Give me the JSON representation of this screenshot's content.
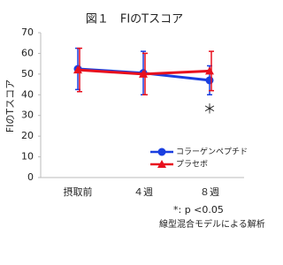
{
  "chart_data": {
    "type": "line",
    "title": "図１　FIのTスコア",
    "y_label": "FIのTスコア",
    "categories": [
      "摂取前",
      "４週",
      "８週"
    ],
    "series": [
      {
        "name": "コラーゲンペプチド",
        "color": "#1a3fe0",
        "marker": "circle",
        "values": [
          52.5,
          50.5,
          47
        ],
        "errors": [
          10,
          10.5,
          7
        ]
      },
      {
        "name": "プラセボ",
        "color": "#e8101e",
        "marker": "triangle",
        "values": [
          52,
          50,
          51.5
        ],
        "errors": [
          10.5,
          10,
          9.5
        ]
      }
    ],
    "ylim": [
      0,
      70
    ],
    "yticks": [
      0,
      10,
      20,
      30,
      40,
      50,
      60,
      70
    ],
    "grid": false,
    "legend": "lower right",
    "annotations": [
      "＊",
      "*: p <0.05",
      "線型混合モデルによる解析"
    ]
  }
}
